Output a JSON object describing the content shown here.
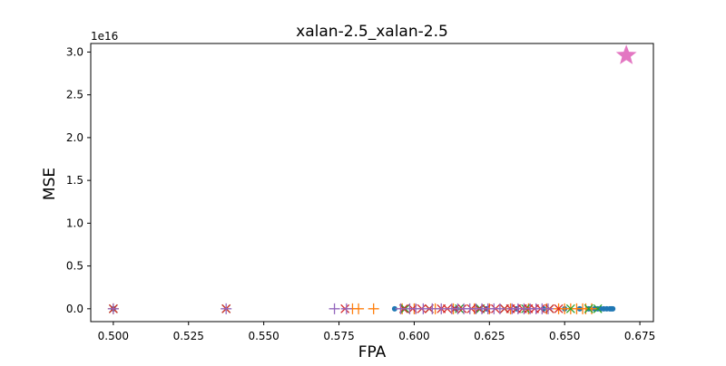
{
  "chart_data": {
    "type": "scatter",
    "title": "xalan-2.5_xalan-2.5",
    "xlabel": "FPA",
    "ylabel": "MSE",
    "y_offset_text": "1e16",
    "xlim": [
      0.4925,
      0.6795
    ],
    "ylim": [
      -0.15,
      3.1
    ],
    "x_ticks": [
      0.5,
      0.525,
      0.55,
      0.575,
      0.6,
      0.625,
      0.65,
      0.675
    ],
    "x_tick_labels": [
      "0.500",
      "0.525",
      "0.550",
      "0.575",
      "0.600",
      "0.625",
      "0.650",
      "0.675"
    ],
    "y_ticks": [
      0.0,
      0.5,
      1.0,
      1.5,
      2.0,
      2.5,
      3.0
    ],
    "y_tick_labels": [
      "0.0",
      "0.5",
      "1.0",
      "1.5",
      "2.0",
      "2.5",
      "3.0"
    ],
    "grid": false,
    "legend": false,
    "series": [
      {
        "marker": "circle",
        "color": "#1f77b4",
        "x": [
          0.5,
          0.5935,
          0.614,
          0.624,
          0.634,
          0.643,
          0.65,
          0.655,
          0.658,
          0.66,
          0.661,
          0.662,
          0.663,
          0.664,
          0.665,
          0.6655,
          0.666
        ],
        "y": [
          0,
          0,
          0,
          0,
          0,
          0,
          0,
          0,
          0,
          0,
          0,
          0,
          0,
          0,
          0,
          0,
          0
        ]
      },
      {
        "marker": "plus",
        "color": "#ff7f0e",
        "x": [
          0.5,
          0.5795,
          0.5815,
          0.5865,
          0.596,
          0.6,
          0.607,
          0.613,
          0.62,
          0.625,
          0.632,
          0.638,
          0.644,
          0.648,
          0.65,
          0.652,
          0.654,
          0.656,
          0.657,
          0.659
        ],
        "y": [
          0,
          0,
          0,
          0,
          0,
          0,
          0,
          0,
          0,
          0,
          0,
          0,
          0,
          0,
          0,
          0,
          0,
          0,
          0,
          0
        ]
      },
      {
        "marker": "x",
        "color": "#2ca02c",
        "x": [
          0.5,
          0.5375,
          0.597,
          0.605,
          0.615,
          0.622,
          0.63,
          0.637,
          0.645,
          0.652,
          0.658,
          0.661
        ],
        "y": [
          0,
          0,
          0,
          0,
          0,
          0,
          0,
          0,
          0,
          0,
          0,
          0
        ]
      },
      {
        "marker": "x",
        "color": "#d62728",
        "x": [
          0.5,
          0.5375,
          0.577,
          0.5965,
          0.5995,
          0.6025,
          0.605,
          0.609,
          0.611,
          0.6135,
          0.616,
          0.619,
          0.6215,
          0.624,
          0.627,
          0.63,
          0.632,
          0.634,
          0.636,
          0.638,
          0.64,
          0.642,
          0.645,
          0.648
        ],
        "y": [
          0,
          0,
          0,
          0,
          0,
          0,
          0,
          0,
          0,
          0,
          0,
          0,
          0,
          0,
          0,
          0,
          0,
          0,
          0,
          0,
          0,
          0,
          0,
          0
        ]
      },
      {
        "marker": "plus",
        "color": "#9467bd",
        "x": [
          0.5,
          0.5375,
          0.5735,
          0.5775,
          0.5955,
          0.5985,
          0.6005,
          0.603,
          0.606,
          0.609,
          0.6125,
          0.6145,
          0.6165,
          0.6185,
          0.6205,
          0.6225,
          0.6245,
          0.6265,
          0.6285,
          0.6325,
          0.6345,
          0.6365,
          0.6385,
          0.6405,
          0.6425,
          0.6445
        ],
        "y": [
          0,
          0,
          0,
          0,
          0,
          0,
          0,
          0,
          0,
          0,
          0,
          0,
          0,
          0,
          0,
          0,
          0,
          0,
          0,
          0,
          0,
          0,
          0,
          0,
          0,
          0
        ]
      },
      {
        "marker": "star",
        "color": "#e377c2",
        "x": [
          0.6705
        ],
        "y": [
          2.96
        ]
      }
    ]
  }
}
